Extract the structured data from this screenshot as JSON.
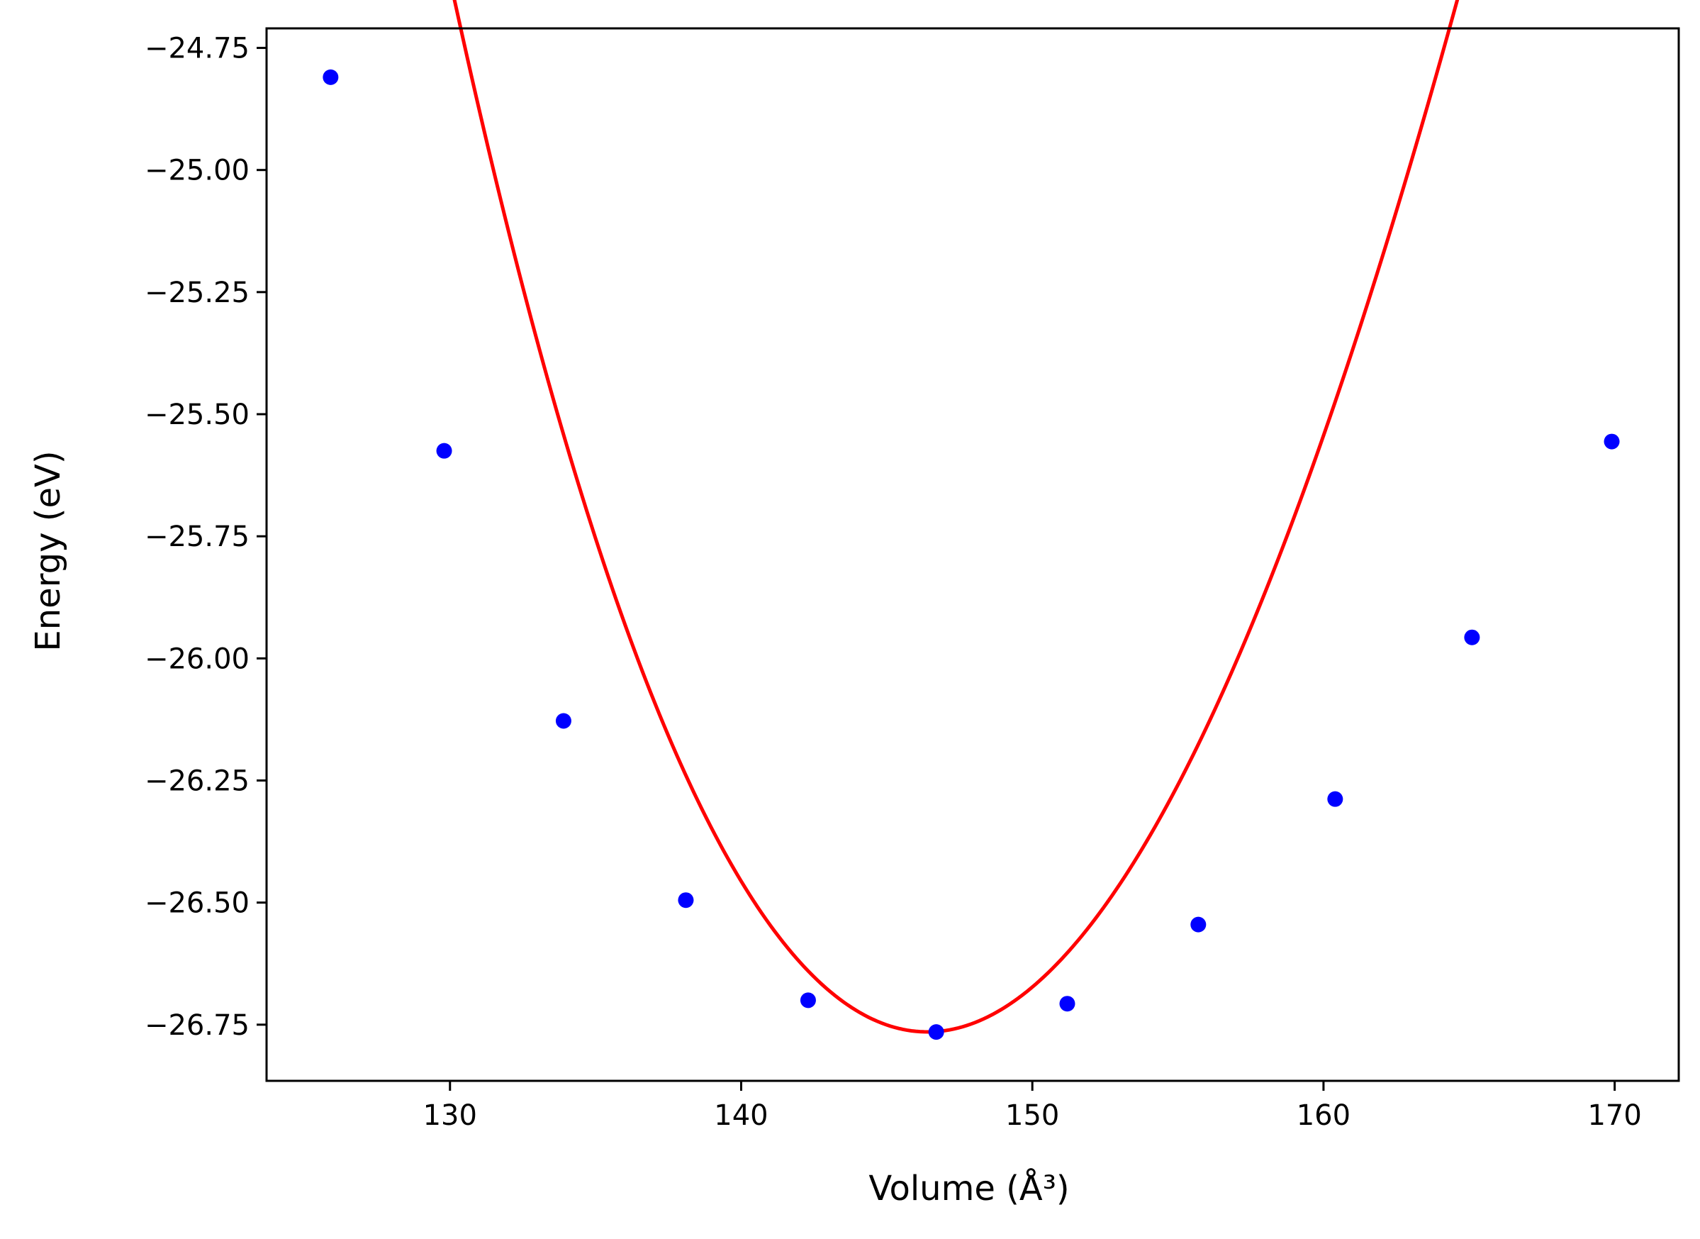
{
  "chart_data": {
    "type": "scatter",
    "xlabel": "Volume (Å³)",
    "ylabel": "Energy (eV)",
    "xlim": [
      123.7,
      172.2
    ],
    "ylim": [
      -26.865,
      -24.71
    ],
    "x_ticks": [
      130,
      140,
      150,
      160,
      170
    ],
    "x_tick_labels": [
      "130",
      "140",
      "150",
      "160",
      "170"
    ],
    "y_ticks": [
      -24.75,
      -25.0,
      -25.25,
      -25.5,
      -25.75,
      -26.0,
      -26.25,
      -26.5,
      -26.75
    ],
    "y_tick_labels": [
      "−24.75",
      "−25.00",
      "−25.25",
      "−25.50",
      "−25.75",
      "−26.00",
      "−26.25",
      "−26.50",
      "−26.75"
    ],
    "grid": false,
    "series": [
      {
        "type": "scatter",
        "color": "#0000ff",
        "x": [
          125.9,
          129.8,
          133.9,
          138.1,
          142.3,
          146.7,
          151.2,
          155.7,
          160.4,
          165.1,
          169.9
        ],
        "y": [
          -24.81,
          -25.575,
          -26.128,
          -26.495,
          -26.7,
          -26.765,
          -26.707,
          -26.545,
          -26.288,
          -25.957,
          -25.556
        ]
      },
      {
        "type": "line",
        "color": "#ff0000",
        "fit": "cubic",
        "fit_coefficients": [
          -26.7647,
          0.0015,
          0.007226,
          -4.73e-05
        ],
        "fit_center": 146.5,
        "x_range": [
          125.9,
          169.9
        ]
      }
    ]
  }
}
